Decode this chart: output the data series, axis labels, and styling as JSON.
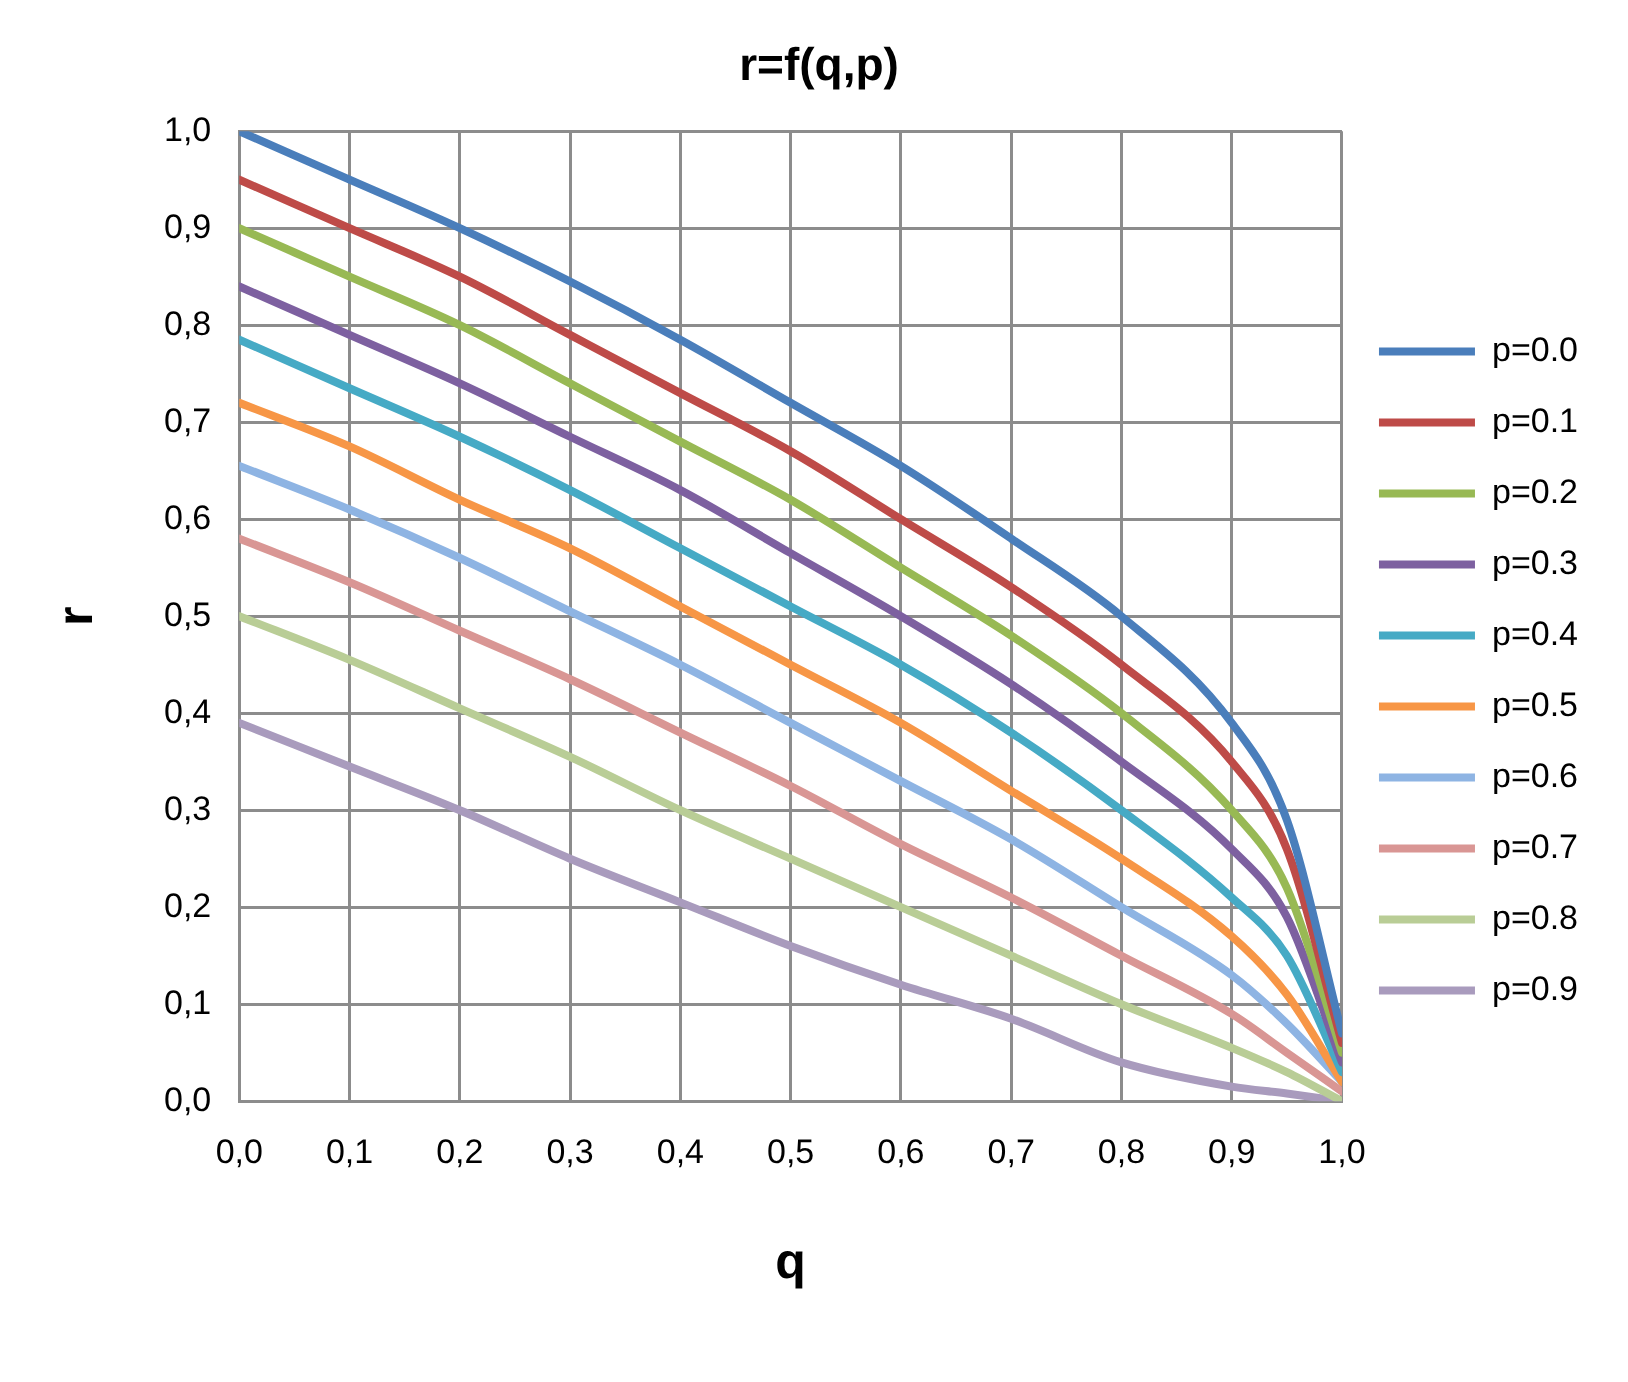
{
  "chart_data": {
    "type": "line",
    "title": "r=f(q,p)",
    "xlabel": "q",
    "ylabel": "r",
    "x": [
      0,
      0.1,
      0.2,
      0.3,
      0.4,
      0.5,
      0.6,
      0.7,
      0.8,
      0.9,
      0.95,
      1.0
    ],
    "xlim": [
      0,
      1
    ],
    "ylim": [
      0,
      1
    ],
    "xticks": [
      {
        "value": 0,
        "label": "0,0"
      },
      {
        "value": 0.1,
        "label": "0,1"
      },
      {
        "value": 0.2,
        "label": "0,2"
      },
      {
        "value": 0.3,
        "label": "0,3"
      },
      {
        "value": 0.4,
        "label": "0,4"
      },
      {
        "value": 0.5,
        "label": "0,5"
      },
      {
        "value": 0.6,
        "label": "0,6"
      },
      {
        "value": 0.7,
        "label": "0,7"
      },
      {
        "value": 0.8,
        "label": "0,8"
      },
      {
        "value": 0.9,
        "label": "0,9"
      },
      {
        "value": 1,
        "label": "1,0"
      }
    ],
    "yticks": [
      {
        "value": 0,
        "label": "0,0"
      },
      {
        "value": 0.1,
        "label": "0,1"
      },
      {
        "value": 0.2,
        "label": "0,2"
      },
      {
        "value": 0.3,
        "label": "0,3"
      },
      {
        "value": 0.4,
        "label": "0,4"
      },
      {
        "value": 0.5,
        "label": "0,5"
      },
      {
        "value": 0.6,
        "label": "0,6"
      },
      {
        "value": 0.7,
        "label": "0,7"
      },
      {
        "value": 0.8,
        "label": "0,8"
      },
      {
        "value": 0.9,
        "label": "0,9"
      },
      {
        "value": 1,
        "label": "1,0"
      }
    ],
    "grid": true,
    "legend": "right",
    "marker": "none",
    "line_style": "solid",
    "series": [
      {
        "name": "p=0.0",
        "color": "#4a7ebb",
        "values": [
          1.0,
          0.95,
          0.9,
          0.845,
          0.785,
          0.72,
          0.655,
          0.58,
          0.5,
          0.39,
          0.29,
          0.07
        ]
      },
      {
        "name": "p=0.1",
        "color": "#be4b48",
        "values": [
          0.95,
          0.9,
          0.85,
          0.79,
          0.73,
          0.67,
          0.6,
          0.53,
          0.45,
          0.35,
          0.26,
          0.06
        ]
      },
      {
        "name": "p=0.2",
        "color": "#98b954",
        "values": [
          0.9,
          0.85,
          0.8,
          0.74,
          0.68,
          0.62,
          0.55,
          0.48,
          0.4,
          0.3,
          0.22,
          0.05
        ]
      },
      {
        "name": "p=0.3",
        "color": "#7d60a0",
        "values": [
          0.84,
          0.79,
          0.74,
          0.685,
          0.63,
          0.565,
          0.5,
          0.43,
          0.35,
          0.26,
          0.19,
          0.04
        ]
      },
      {
        "name": "p=0.4",
        "color": "#46aac5",
        "values": [
          0.785,
          0.735,
          0.685,
          0.63,
          0.57,
          0.51,
          0.45,
          0.38,
          0.3,
          0.21,
          0.15,
          0.03
        ]
      },
      {
        "name": "p=0.5",
        "color": "#f79646",
        "values": [
          0.72,
          0.675,
          0.62,
          0.57,
          0.51,
          0.45,
          0.39,
          0.32,
          0.25,
          0.17,
          0.11,
          0.02
        ]
      },
      {
        "name": "p=0.6",
        "color": "#8eb4e3",
        "values": [
          0.655,
          0.61,
          0.56,
          0.505,
          0.45,
          0.39,
          0.33,
          0.27,
          0.2,
          0.13,
          0.08,
          0.02
        ]
      },
      {
        "name": "p=0.7",
        "color": "#d99694",
        "values": [
          0.58,
          0.535,
          0.485,
          0.435,
          0.38,
          0.325,
          0.265,
          0.21,
          0.15,
          0.09,
          0.05,
          0.01
        ]
      },
      {
        "name": "p=0.8",
        "color": "#b9cd96",
        "values": [
          0.5,
          0.455,
          0.405,
          0.355,
          0.3,
          0.25,
          0.2,
          0.15,
          0.1,
          0.055,
          0.03,
          0.0
        ]
      },
      {
        "name": "p=0.9",
        "color": "#a99bbd",
        "values": [
          0.39,
          0.345,
          0.3,
          0.25,
          0.205,
          0.16,
          0.12,
          0.085,
          0.04,
          0.015,
          0.008,
          0.0
        ]
      }
    ]
  }
}
